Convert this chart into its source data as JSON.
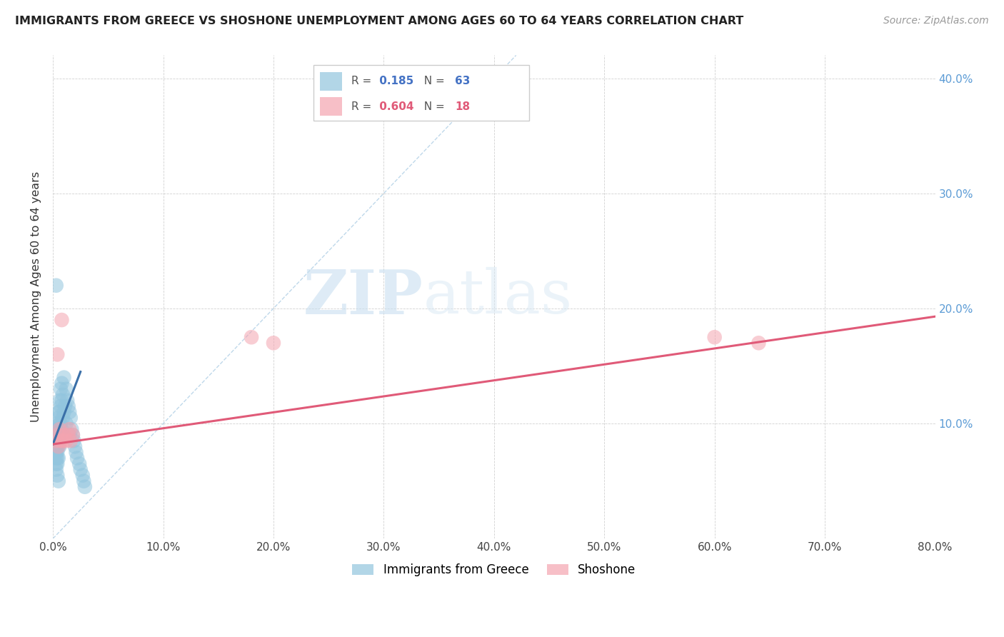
{
  "title": "IMMIGRANTS FROM GREECE VS SHOSHONE UNEMPLOYMENT AMONG AGES 60 TO 64 YEARS CORRELATION CHART",
  "source": "Source: ZipAtlas.com",
  "ylabel": "Unemployment Among Ages 60 to 64 years",
  "xlim": [
    0.0,
    0.8
  ],
  "ylim": [
    0.0,
    0.42
  ],
  "xticks": [
    0.0,
    0.1,
    0.2,
    0.3,
    0.4,
    0.5,
    0.6,
    0.7,
    0.8
  ],
  "yticks": [
    0.0,
    0.1,
    0.2,
    0.3,
    0.4
  ],
  "xtick_labels": [
    "0.0%",
    "10.0%",
    "20.0%",
    "30.0%",
    "40.0%",
    "50.0%",
    "60.0%",
    "70.0%",
    "80.0%"
  ],
  "right_ytick_labels": [
    "",
    "10.0%",
    "20.0%",
    "30.0%",
    "40.0%"
  ],
  "blue_R": 0.185,
  "blue_N": 63,
  "pink_R": 0.604,
  "pink_N": 18,
  "blue_color": "#92c5de",
  "pink_color": "#f4a4b0",
  "blue_trend_color": "#3a6fa8",
  "pink_trend_color": "#e05a78",
  "ref_line_color": "#b8d4e8",
  "watermark_zip": "ZIP",
  "watermark_atlas": "atlas",
  "legend_label_blue": "Immigrants from Greece",
  "legend_label_pink": "Shoshone",
  "blue_scatter_x": [
    0.002,
    0.002,
    0.003,
    0.003,
    0.003,
    0.003,
    0.003,
    0.003,
    0.003,
    0.003,
    0.004,
    0.004,
    0.004,
    0.004,
    0.004,
    0.004,
    0.004,
    0.004,
    0.004,
    0.005,
    0.005,
    0.005,
    0.005,
    0.005,
    0.005,
    0.005,
    0.005,
    0.006,
    0.006,
    0.006,
    0.006,
    0.006,
    0.007,
    0.007,
    0.007,
    0.007,
    0.008,
    0.008,
    0.008,
    0.009,
    0.009,
    0.01,
    0.01,
    0.011,
    0.012,
    0.012,
    0.013,
    0.014,
    0.015,
    0.015,
    0.016,
    0.017,
    0.018,
    0.019,
    0.02,
    0.021,
    0.022,
    0.024,
    0.025,
    0.027,
    0.028,
    0.029,
    0.003
  ],
  "blue_scatter_y": [
    0.085,
    0.075,
    0.095,
    0.09,
    0.085,
    0.08,
    0.075,
    0.07,
    0.065,
    0.06,
    0.1,
    0.095,
    0.09,
    0.085,
    0.08,
    0.075,
    0.07,
    0.065,
    0.055,
    0.11,
    0.105,
    0.095,
    0.09,
    0.085,
    0.08,
    0.07,
    0.05,
    0.12,
    0.11,
    0.1,
    0.09,
    0.08,
    0.13,
    0.115,
    0.1,
    0.085,
    0.135,
    0.12,
    0.095,
    0.125,
    0.105,
    0.14,
    0.11,
    0.115,
    0.13,
    0.1,
    0.12,
    0.115,
    0.11,
    0.09,
    0.105,
    0.095,
    0.09,
    0.085,
    0.08,
    0.075,
    0.07,
    0.065,
    0.06,
    0.055,
    0.05,
    0.045,
    0.22
  ],
  "pink_scatter_x": [
    0.003,
    0.004,
    0.005,
    0.006,
    0.007,
    0.008,
    0.009,
    0.01,
    0.012,
    0.014,
    0.015,
    0.016,
    0.018,
    0.004,
    0.18,
    0.2,
    0.6,
    0.64
  ],
  "pink_scatter_y": [
    0.085,
    0.09,
    0.08,
    0.095,
    0.085,
    0.19,
    0.085,
    0.09,
    0.085,
    0.09,
    0.095,
    0.085,
    0.09,
    0.16,
    0.175,
    0.17,
    0.175,
    0.17
  ],
  "blue_trend_x": [
    0.0,
    0.025
  ],
  "blue_trend_y": [
    0.082,
    0.145
  ],
  "pink_trend_x": [
    0.0,
    0.8
  ],
  "pink_trend_y": [
    0.082,
    0.193
  ],
  "ref_line_x": [
    0.0,
    0.42
  ],
  "ref_line_y": [
    0.0,
    0.42
  ]
}
